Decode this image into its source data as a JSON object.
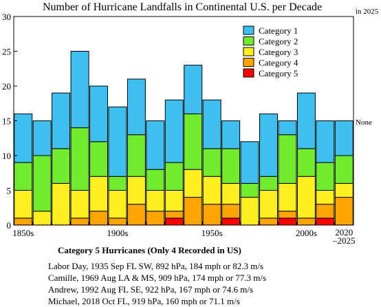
{
  "chart_data": {
    "type": "bar",
    "stacked": true,
    "title": "Number of Hurricane Landfalls in Continental U.S. per Decade",
    "corner_note": "in 2025",
    "right_note": "None",
    "categories": [
      "1850s",
      "1860s",
      "1870s",
      "1880s",
      "1890s",
      "1900s",
      "1910s",
      "1920s",
      "1930s",
      "1940s",
      "1950s",
      "1960s",
      "1970s",
      "1980s",
      "1990s",
      "2000s",
      "2010s",
      "2020–2025"
    ],
    "x_tick_labels": [
      "1850s",
      "1900s",
      "1950s",
      "2000s",
      "2020",
      "–2025"
    ],
    "ylim": [
      0,
      30
    ],
    "y_ticks": [
      0,
      5,
      10,
      15,
      20,
      25,
      30
    ],
    "grid": false,
    "legend_position": "top-right",
    "series": [
      {
        "name": "Category 1",
        "color": "#3fbff0",
        "values": [
          7,
          5,
          8,
          11,
          8,
          10,
          8,
          7,
          9,
          7,
          7,
          4,
          6,
          9,
          2,
          8,
          6,
          5
        ]
      },
      {
        "name": "Category 2",
        "color": "#72ea2e",
        "values": [
          4,
          8,
          5,
          9,
          5,
          2,
          6,
          3,
          4,
          8,
          4,
          5,
          2,
          2,
          7,
          4,
          4,
          4
        ]
      },
      {
        "name": "Category 3",
        "color": "#ffee22",
        "values": [
          4,
          2,
          6,
          4,
          5,
          4,
          4,
          3,
          3,
          4,
          4,
          3,
          4,
          4,
          4,
          6,
          2,
          2
        ]
      },
      {
        "name": "Category 4",
        "color": "#ffa400",
        "values": [
          1,
          0,
          0,
          1,
          2,
          1,
          3,
          2,
          1,
          4,
          3,
          2,
          0,
          1,
          1,
          1,
          2,
          4
        ]
      },
      {
        "name": "Category 5",
        "color": "#ff0000",
        "values": [
          0,
          0,
          0,
          0,
          0,
          0,
          0,
          0,
          1,
          0,
          0,
          1,
          0,
          0,
          1,
          0,
          1,
          0
        ]
      }
    ]
  },
  "notes": {
    "heading": "Category 5 Hurricanes (Only 4 Recorded in US)",
    "lines": [
      "Labor Day, 1935 Sep FL SW, 892 hPa, 184 mph or 82.3 m/s",
      "Camille, 1969 Aug LA & MS, 909 hPa, 174 mph or 77.3 m/s",
      "Andrew, 1992 Aug FL SE, 922 hPa, 167 mph or 74.6 m/s",
      "Michael, 2018 Oct FL, 919 hPa, 160 mph or 71.1 m/s"
    ]
  }
}
